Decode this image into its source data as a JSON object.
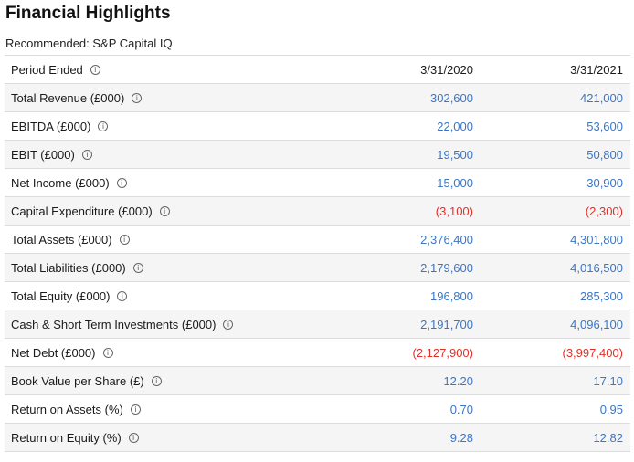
{
  "title": "Financial Highlights",
  "subtitle": "Recommended: S&P Capital IQ",
  "colors": {
    "value": "#3b76c4",
    "negative": "#e0302a",
    "row_alt": "#f5f5f5"
  },
  "header": {
    "label": "Period Ended",
    "col1": "3/31/2020",
    "col2": "3/31/2021"
  },
  "rows": [
    {
      "label": "Total Revenue (£000)",
      "v1": "302,600",
      "v2": "421,000"
    },
    {
      "label": "EBITDA (£000)",
      "v1": "22,000",
      "v2": "53,600"
    },
    {
      "label": "EBIT (£000)",
      "v1": "19,500",
      "v2": "50,800"
    },
    {
      "label": "Net Income (£000)",
      "v1": "15,000",
      "v2": "30,900"
    },
    {
      "label": "Capital Expenditure (£000)",
      "v1": "(3,100)",
      "v2": "(2,300)"
    },
    {
      "label": "Total Assets (£000)",
      "v1": "2,376,400",
      "v2": "4,301,800"
    },
    {
      "label": "Total Liabilities (£000)",
      "v1": "2,179,600",
      "v2": "4,016,500"
    },
    {
      "label": "Total Equity (£000)",
      "v1": "196,800",
      "v2": "285,300"
    },
    {
      "label": "Cash & Short Term Investments (£000)",
      "v1": "2,191,700",
      "v2": "4,096,100"
    },
    {
      "label": "Net Debt (£000)",
      "v1": "(2,127,900)",
      "v2": "(3,997,400)"
    },
    {
      "label": "Book Value per Share (£)",
      "v1": "12.20",
      "v2": "17.10"
    },
    {
      "label": "Return on Assets (%)",
      "v1": "0.70",
      "v2": "0.95"
    },
    {
      "label": "Return on Equity (%)",
      "v1": "9.28",
      "v2": "12.82"
    }
  ]
}
